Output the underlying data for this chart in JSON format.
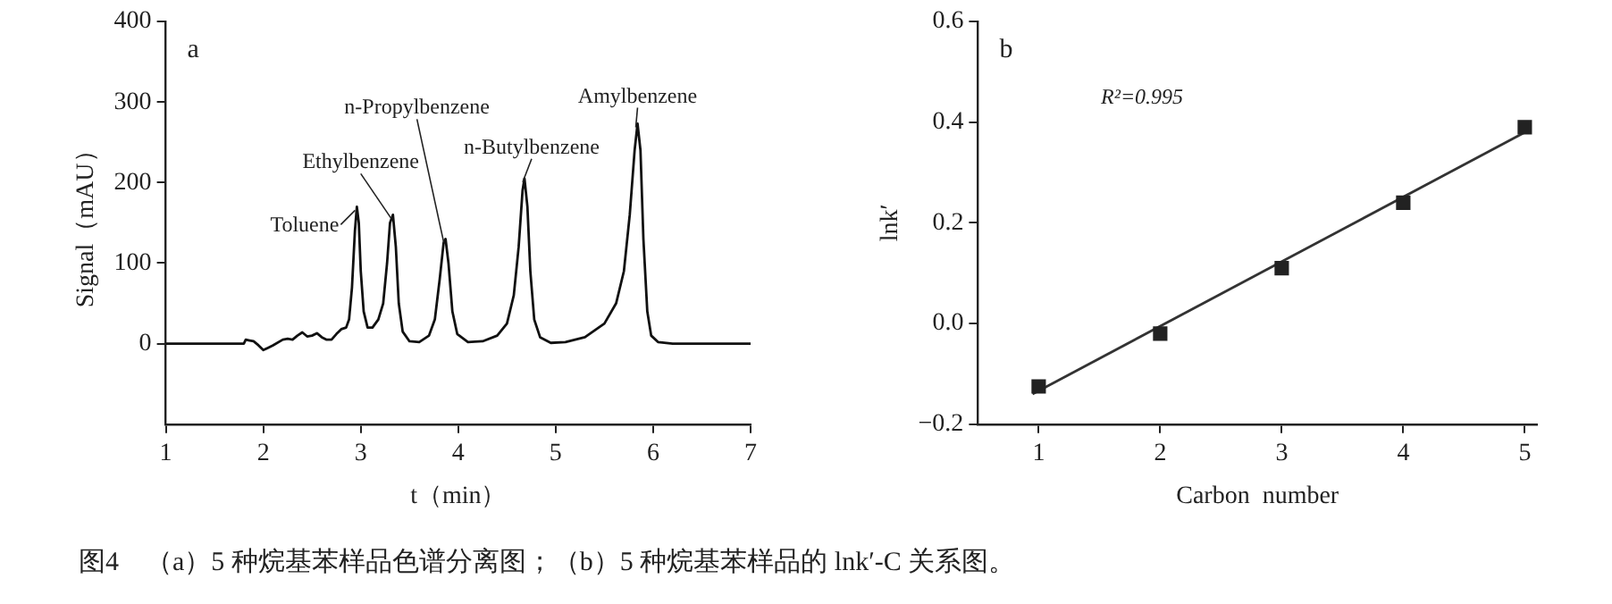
{
  "chart_data": [
    {
      "type": "line",
      "xlabel": "t（min）",
      "ylabel": "Signal（mAU）",
      "xlim": [
        1,
        7
      ],
      "xticks": [
        1,
        2,
        3,
        4,
        5,
        6,
        7
      ],
      "ylim": [
        -100,
        400
      ],
      "yticks": [
        0,
        100,
        200,
        300,
        400
      ],
      "grid": false,
      "legend": false,
      "line_style": "solid",
      "color": "#111111",
      "x": [
        1.0,
        1.8,
        1.82,
        1.86,
        1.9,
        1.95,
        2.0,
        2.05,
        2.1,
        2.2,
        2.25,
        2.3,
        2.35,
        2.4,
        2.45,
        2.5,
        2.55,
        2.6,
        2.65,
        2.7,
        2.75,
        2.8,
        2.85,
        2.88,
        2.91,
        2.94,
        2.96,
        2.98,
        3.0,
        3.03,
        3.07,
        3.12,
        3.18,
        3.23,
        3.27,
        3.3,
        3.33,
        3.36,
        3.39,
        3.43,
        3.5,
        3.6,
        3.7,
        3.76,
        3.81,
        3.85,
        3.87,
        3.9,
        3.94,
        3.99,
        4.1,
        4.25,
        4.4,
        4.5,
        4.57,
        4.62,
        4.66,
        4.68,
        4.71,
        4.74,
        4.78,
        4.84,
        4.95,
        5.1,
        5.3,
        5.5,
        5.62,
        5.7,
        5.76,
        5.81,
        5.84,
        5.87,
        5.9,
        5.94,
        5.98,
        6.05,
        6.2,
        7.0
      ],
      "values": [
        0,
        0,
        5,
        4,
        3,
        -2,
        -8,
        -5,
        -2,
        5,
        6,
        5,
        10,
        14,
        9,
        10,
        13,
        8,
        5,
        5,
        12,
        18,
        20,
        30,
        70,
        140,
        170,
        150,
        90,
        40,
        20,
        20,
        30,
        50,
        100,
        150,
        160,
        120,
        50,
        15,
        3,
        2,
        10,
        30,
        80,
        125,
        130,
        100,
        40,
        12,
        2,
        3,
        10,
        25,
        60,
        120,
        190,
        205,
        170,
        90,
        30,
        8,
        1,
        2,
        8,
        25,
        50,
        90,
        160,
        240,
        273,
        240,
        130,
        40,
        10,
        2,
        0,
        0
      ],
      "annotations": [
        "a",
        {
          "text": "Toluene",
          "x": 2.96,
          "y": 170
        },
        {
          "text": "Ethylbenzene",
          "x": 3.33,
          "y": 160
        },
        {
          "text": "n-Propylbenzene",
          "x": 3.87,
          "y": 130
        },
        {
          "text": "n-Butylbenzene",
          "x": 4.68,
          "y": 205
        },
        {
          "text": "Amylbenzene",
          "x": 5.84,
          "y": 273
        },
        "图4　（a）5 种烷基苯样品色谱分离图；（b）5 种烷基苯样品的 lnk′-C 关系图。"
      ]
    },
    {
      "type": "scatter",
      "xlabel": "Carbon  number",
      "ylabel": "lnk′",
      "xlim": [
        0.5,
        5.1
      ],
      "xticks": [
        1,
        2,
        3,
        4,
        5
      ],
      "ylim": [
        -0.2,
        0.6
      ],
      "yticks": [
        -0.2,
        {
          "value": 0,
          "label": "0.0"
        },
        0.2,
        0.4,
        0.6
      ],
      "grid": false,
      "legend": false,
      "line_style": "solid",
      "series": [
        {
          "marker": "square",
          "color": "#222222",
          "x": [
            1,
            2,
            3,
            4,
            5
          ],
          "values": [
            -0.125,
            -0.02,
            0.11,
            0.24,
            0.39
          ]
        },
        {
          "type": "line",
          "color": "#333333",
          "x": [
            0.95,
            5.05
          ],
          "values": [
            -0.14,
            0.386
          ]
        }
      ],
      "annotations": [
        "b",
        "R²=0.995"
      ]
    }
  ]
}
